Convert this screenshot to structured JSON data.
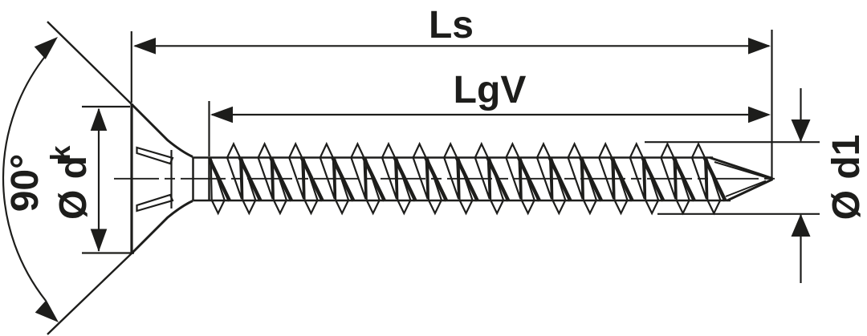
{
  "labels": {
    "total_length": "Ls",
    "thread_length": "LgV",
    "head_angle": "90°",
    "head_diameter": {
      "main": "Ø d",
      "sub": "k"
    },
    "outer_diameter": "Ø d1"
  },
  "colors": {
    "line": "#1d1d1b",
    "background": "#ffffff"
  }
}
